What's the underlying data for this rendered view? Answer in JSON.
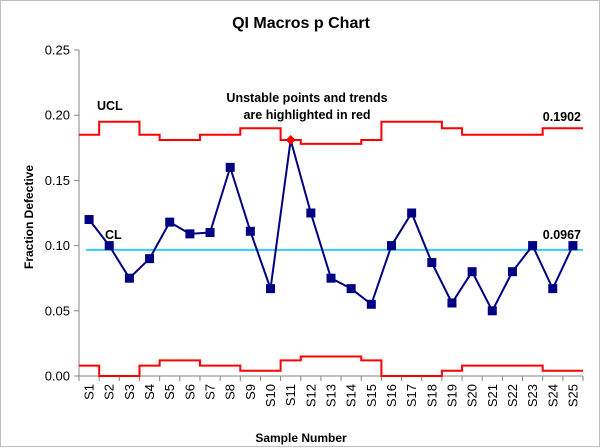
{
  "chart_data": {
    "type": "line",
    "title": "QI Macros p Chart",
    "xlabel": "Sample Number",
    "ylabel": "Fraction Defective",
    "ylim": [
      0,
      0.25
    ],
    "yticks": [
      "0.00",
      "0.05",
      "0.10",
      "0.15",
      "0.20",
      "0.25"
    ],
    "categories": [
      "S1",
      "S2",
      "S3",
      "S4",
      "S5",
      "S6",
      "S7",
      "S8",
      "S9",
      "S10",
      "S11",
      "S12",
      "S13",
      "S14",
      "S15",
      "S16",
      "S17",
      "S18",
      "S19",
      "S20",
      "S21",
      "S22",
      "S23",
      "S24",
      "S25"
    ],
    "series": [
      {
        "name": "",
        "color": "#000080",
        "values": [
          0.12,
          0.1,
          0.075,
          0.09,
          0.118,
          0.109,
          0.11,
          0.16,
          0.111,
          0.067,
          0.181,
          0.125,
          0.075,
          0.067,
          0.055,
          0.1,
          0.125,
          0.087,
          0.056,
          0.08,
          0.05,
          0.08,
          0.1,
          0.067,
          0.1
        ]
      }
    ],
    "highlighted_points": [
      10
    ],
    "highlight_color": "#ff0000",
    "center_line": {
      "label": "CL",
      "value": 0.0967,
      "value_label": "0.0967",
      "color": "#33ccff"
    },
    "ucl": {
      "label": "UCL",
      "value_label": "0.1902",
      "color": "#ff0000",
      "values": [
        0.185,
        0.195,
        0.195,
        0.185,
        0.181,
        0.181,
        0.185,
        0.185,
        0.19,
        0.19,
        0.181,
        0.178,
        0.178,
        0.178,
        0.181,
        0.195,
        0.195,
        0.195,
        0.19,
        0.185,
        0.185,
        0.185,
        0.185,
        0.19,
        0.19
      ]
    },
    "lcl": {
      "color": "#ff0000",
      "values": [
        0.008,
        0.0,
        0.0,
        0.008,
        0.012,
        0.012,
        0.008,
        0.008,
        0.004,
        0.004,
        0.012,
        0.015,
        0.015,
        0.015,
        0.012,
        0.0,
        0.0,
        0.0,
        0.004,
        0.008,
        0.008,
        0.008,
        0.008,
        0.004,
        0.004
      ]
    },
    "annotation": [
      "Unstable points and trends",
      "are highlighted in red"
    ]
  }
}
